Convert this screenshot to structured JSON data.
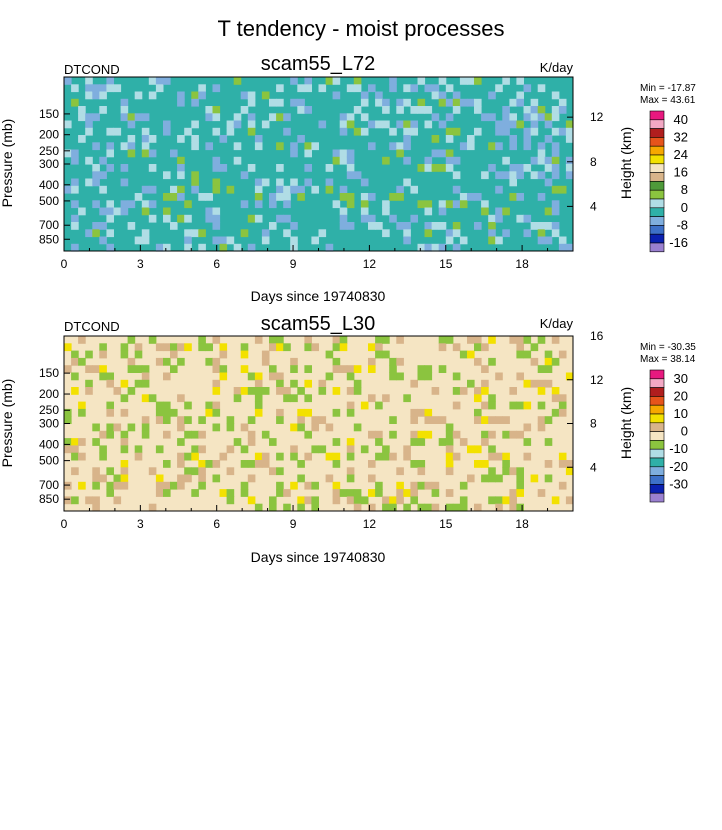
{
  "figure": {
    "title": "T tendency - moist processes"
  },
  "chart_data": [
    {
      "type": "heatmap",
      "panel_title": "scam55_L72",
      "left_string": "DTCOND",
      "right_string": "K/day",
      "xlabel": "Days since 19740830",
      "ylabel": "Pressure (mb)",
      "ylabel_right": "Height (km)",
      "x_ticks": [
        0,
        3,
        6,
        9,
        12,
        15,
        18
      ],
      "xlim": [
        0,
        20
      ],
      "y_ticks": [
        150,
        200,
        250,
        300,
        400,
        500,
        700,
        850
      ],
      "ylim": [
        1000,
        90
      ],
      "y_scale": "log",
      "right_ticks": [
        4,
        8,
        12
      ],
      "stats": {
        "min": "Min = -17.87",
        "max": "Max =  43.61"
      },
      "colorbar": {
        "labels": [
          "40",
          "32",
          "24",
          "16",
          "8",
          "0",
          "-8",
          "-16"
        ],
        "colors": [
          "#e8197f",
          "#f3a8c4",
          "#b01e1e",
          "#e6541b",
          "#f6a800",
          "#f3e100",
          "#f5e5c3",
          "#d8b48a",
          "#4e9a3a",
          "#8bc43f",
          "#b0dde5",
          "#2fb0a8",
          "#7faede",
          "#3d70c8",
          "#0a20b0",
          "#9a80d0"
        ]
      },
      "background_class": 11
    },
    {
      "type": "heatmap",
      "panel_title": "scam55_L30",
      "left_string": "DTCOND",
      "right_string": "K/day",
      "xlabel": "Days since 19740830",
      "ylabel": "Pressure (mb)",
      "ylabel_right": "Height (km)",
      "x_ticks": [
        0,
        3,
        6,
        9,
        12,
        15,
        18
      ],
      "xlim": [
        0,
        20
      ],
      "y_ticks": [
        150,
        200,
        250,
        300,
        400,
        500,
        700,
        850
      ],
      "ylim": [
        1000,
        90
      ],
      "y_scale": "log",
      "right_ticks": [
        4,
        8,
        12,
        16
      ],
      "stats": {
        "min": "Min = -30.35",
        "max": "Max =  38.14"
      },
      "colorbar": {
        "labels": [
          "30",
          "20",
          "10",
          "0",
          "-10",
          "-20",
          "-30"
        ],
        "colors": [
          "#e8197f",
          "#f3a8c4",
          "#b01e1e",
          "#e6541b",
          "#f6a800",
          "#f3e100",
          "#d8b48a",
          "#f5e5c3",
          "#8bc43f",
          "#b0dde5",
          "#2fb0a8",
          "#7faede",
          "#3d70c8",
          "#0a20b0",
          "#9a80d0"
        ]
      },
      "background_class": 7
    }
  ]
}
